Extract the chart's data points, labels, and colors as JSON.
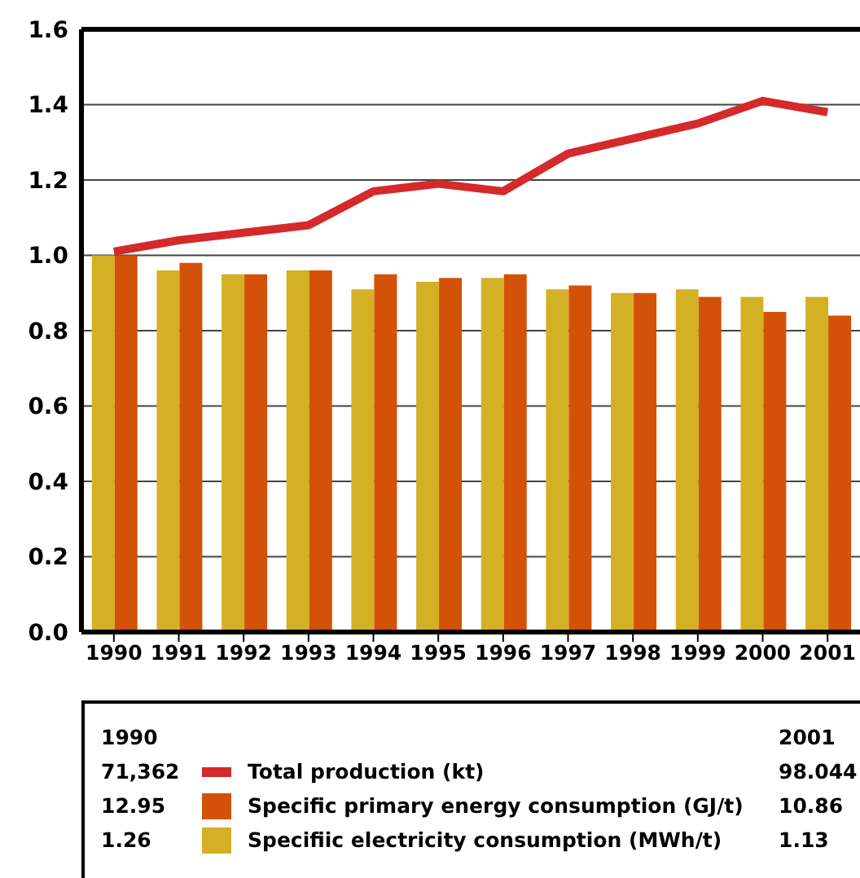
{
  "chart_data": {
    "type": "bar",
    "categories": [
      "1990",
      "1991",
      "1992",
      "1993",
      "1994",
      "1995",
      "1996",
      "1997",
      "1998",
      "1999",
      "2000",
      "2001"
    ],
    "series": [
      {
        "name": "Total production (kt)",
        "type": "line",
        "color": "#d42a2a",
        "values": [
          1.01,
          1.04,
          1.06,
          1.08,
          1.17,
          1.19,
          1.17,
          1.27,
          1.31,
          1.35,
          1.41,
          1.38
        ]
      },
      {
        "name": "Specific primary energy consumption (GJ/t)",
        "color": "#d45208",
        "values": [
          1.0,
          0.98,
          0.95,
          0.96,
          0.95,
          0.94,
          0.95,
          0.92,
          0.9,
          0.89,
          0.85,
          0.84
        ]
      },
      {
        "name": "Specifiic electricity consumption (MWh/t)",
        "color": "#d4b024",
        "values": [
          1.0,
          0.96,
          0.95,
          0.96,
          0.91,
          0.93,
          0.94,
          0.91,
          0.9,
          0.91,
          0.89,
          0.89
        ]
      }
    ],
    "ylim": [
      0,
      1.6
    ],
    "yticks": [
      {
        "value": 0,
        "label": "0.0"
      },
      0.2,
      0.4,
      0.6,
      0.8,
      {
        "value": 1,
        "label": "1.0"
      },
      1.2,
      1.4,
      1.6
    ],
    "grid": "y",
    "legend": "bottom",
    "marker": "none",
    "line_style": "solid",
    "annotations": [
      "1990",
      "2001",
      "71,362",
      "98.044",
      "12.95",
      "10.86",
      "1.26",
      "1.13"
    ]
  }
}
